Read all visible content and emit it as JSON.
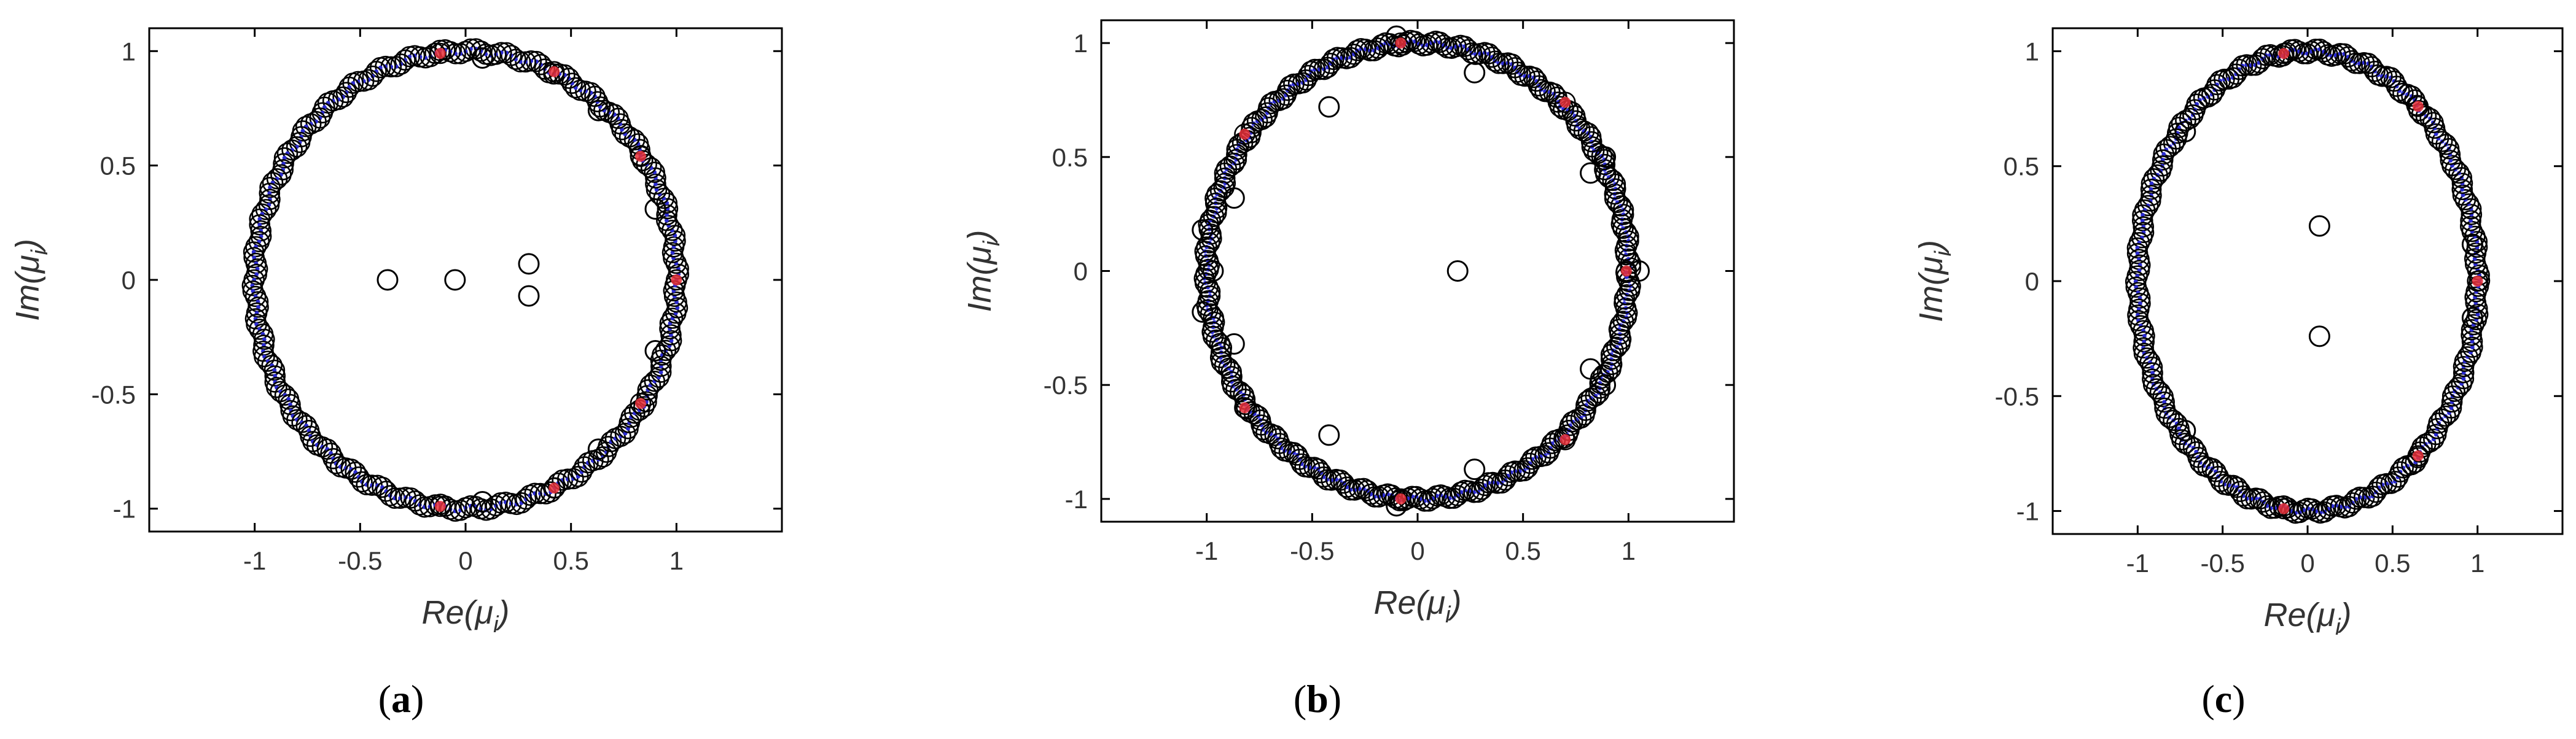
{
  "figure": {
    "panels": [
      {
        "label": "a"
      },
      {
        "label": "b"
      },
      {
        "label": "c"
      }
    ]
  },
  "colors": {
    "axes": "#000000",
    "tick_text": "#333333",
    "ring_marker": "#000000",
    "blue_marker": "#2b2bd0",
    "red_marker": "#e8303a"
  },
  "chart_data": [
    {
      "type": "scatter",
      "title": "",
      "xlabel": "Re(μ_i)",
      "ylabel": "Im(μ_i)",
      "xlim": [
        -1.5,
        1.5
      ],
      "ylim": [
        -1.1,
        1.1
      ],
      "xticks": [
        -1,
        -0.5,
        0,
        0.5,
        1
      ],
      "yticks": [
        -1,
        -0.5,
        0,
        0.5,
        1
      ],
      "xtick_labels": [
        "-1",
        "-0.5",
        "0",
        "0.5",
        "1"
      ],
      "ytick_labels": [
        "-1",
        "-0.5",
        "0",
        "0.5",
        "1"
      ],
      "grid": false,
      "legend": "none",
      "unit_circle_eigenvalues": {
        "count": 260,
        "radius": 1.0,
        "marker": "open circle",
        "fill_colors": [
          "blue",
          "red"
        ]
      },
      "series": [
        {
          "marker": "open circle",
          "x": [
            -0.37,
            -0.05,
            0.3,
            0.3,
            0.63,
            0.63,
            0.9,
            0.9,
            0.08,
            0.08
          ],
          "y": [
            0.0,
            0.0,
            0.07,
            -0.07,
            0.74,
            -0.74,
            0.31,
            -0.31,
            0.97,
            -0.97
          ]
        }
      ],
      "red_markers": {
        "x": [
          -0.12,
          -0.12,
          0.42,
          0.42,
          0.83,
          0.83,
          1.0
        ],
        "y": [
          0.99,
          -0.99,
          0.91,
          -0.91,
          0.54,
          -0.54,
          0.0
        ]
      }
    },
    {
      "type": "scatter",
      "title": "",
      "xlabel": "Re(μ_i)",
      "ylabel": "Im(μ_i)",
      "xlim": [
        -1.5,
        1.5
      ],
      "ylim": [
        -1.1,
        1.1
      ],
      "xticks": [
        -1,
        -0.5,
        0,
        0.5,
        1
      ],
      "yticks": [
        -1,
        -0.5,
        0,
        0.5,
        1
      ],
      "xtick_labels": [
        "-1",
        "-0.5",
        "0",
        "0.5",
        "1"
      ],
      "ytick_labels": [
        "-1",
        "-0.5",
        "0",
        "0.5",
        "1"
      ],
      "grid": false,
      "legend": "none",
      "unit_circle_eigenvalues": {
        "count": 320,
        "radius": 1.0,
        "marker": "open circle",
        "fill_colors": [
          "blue",
          "red"
        ]
      },
      "series": [
        {
          "marker": "open circle",
          "x": [
            0.19,
            -0.42,
            -0.42,
            0.27,
            0.27,
            -0.87,
            -0.87,
            0.82,
            0.82,
            -1.02,
            -1.02,
            -0.97,
            0.89,
            0.89,
            1.05,
            -0.1,
            -0.1
          ],
          "y": [
            0.0,
            0.72,
            -0.72,
            0.87,
            -0.87,
            0.32,
            -0.32,
            0.43,
            -0.43,
            0.18,
            -0.18,
            0.0,
            0.5,
            -0.5,
            0.0,
            1.03,
            -1.03
          ]
        }
      ],
      "red_markers": {
        "x": [
          -0.08,
          -0.08,
          -0.82,
          -0.82,
          0.7,
          0.7,
          0.99
        ],
        "y": [
          1.0,
          -1.0,
          0.6,
          -0.6,
          0.74,
          -0.74,
          0.0
        ]
      }
    },
    {
      "type": "scatter",
      "title": "",
      "xlabel": "Re(μ_i)",
      "ylabel": "Im(μ_i)",
      "xlim": [
        -1.5,
        1.5
      ],
      "ylim": [
        -1.1,
        1.1
      ],
      "xticks": [
        -1,
        -0.5,
        0,
        0.5,
        1
      ],
      "yticks": [
        -1,
        -0.5,
        0,
        0.5,
        1
      ],
      "xtick_labels": [
        "-1",
        "-0.5",
        "0",
        "0.5",
        "1"
      ],
      "ytick_labels": [
        "-1",
        "-0.5",
        "0",
        "0.5",
        "1"
      ],
      "grid": false,
      "legend": "none",
      "unit_circle_eigenvalues": {
        "count": 260,
        "radius": 1.0,
        "marker": "open circle",
        "fill_colors": [
          "blue",
          "red"
        ]
      },
      "series": [
        {
          "marker": "open circle",
          "x": [
            0.07,
            0.07,
            -0.72,
            -0.72,
            0.97,
            0.97
          ],
          "y": [
            0.24,
            -0.24,
            0.65,
            -0.65,
            0.16,
            -0.16
          ]
        }
      ],
      "red_markers": {
        "x": [
          -0.14,
          -0.14,
          0.65,
          0.65,
          1.0
        ],
        "y": [
          0.99,
          -0.99,
          0.76,
          -0.76,
          0.0
        ]
      }
    }
  ]
}
